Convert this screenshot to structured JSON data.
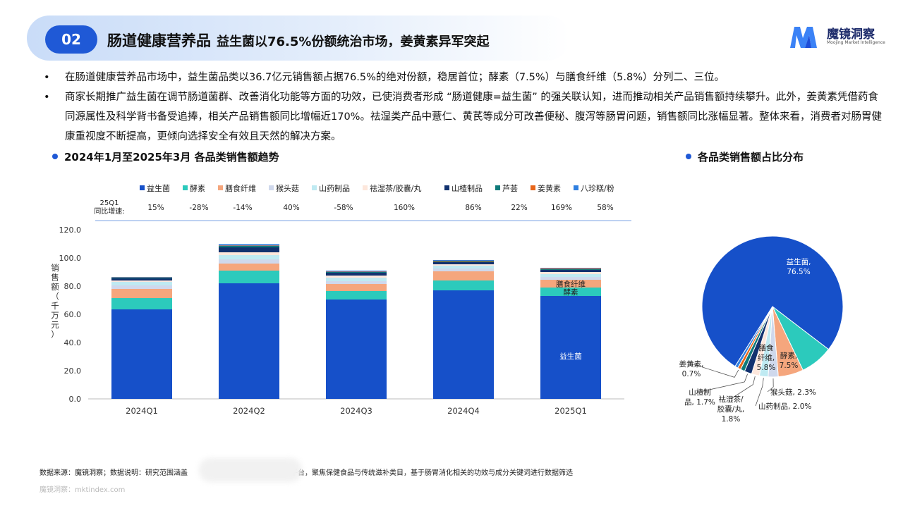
{
  "header": {
    "section_number": "02",
    "title": "肠道健康营养品",
    "subtitle": "益生菌以76.5%份额统治市场，姜黄素异军突起"
  },
  "brand": {
    "name": "魔镜洞察",
    "tagline": "Moojing Market Intelligence"
  },
  "bullets": [
    "在肠道健康营养品市场中，益生菌品类以36.7亿元销售额占据76.5%的绝对份额，稳居首位；酵素（7.5%）与膳食纤维（5.8%）分列二、三位。",
    "商家长期推广益生菌在调节肠道菌群、改善消化功能等方面的功效，已使消费者形成 “肠道健康=益生菌” 的强关联认知，进而推动相关产品销售额持续攀升。此外，姜黄素凭借药食同源属性及科学背书备受追捧，相关产品销售额同比增幅近170%。祛湿类产品中薏仁、黄芪等成分可改善便秘、腹泻等肠胃问题，销售额同比涨幅显著。整体来看，消费者对肠胃健康重视度不断提高，更倾向选择安全有效且天然的解决方案。"
  ],
  "bullet_marker": "•",
  "left_title": "2024年1月至2025年3月 各品类销售额趋势",
  "right_title": "各品类销售额占比分布",
  "yoy_label_line1": "25Q1",
  "yoy_label_line2": "同比增速:",
  "footer": {
    "source_line": "数据来源：魔镜洞察；数据说明：研究范围涵盖",
    "source_line_end": "平台，聚焦保健食品与传统滋补类目，基于肠胃消化相关的功效与成分关键词进行数据筛选",
    "site": "魔镜洞察：mktindex.com"
  },
  "chart_data": [
    {
      "type": "bar",
      "stacked": true,
      "title": "2024年1月至2025年3月 各品类销售额趋势",
      "ylabel": "销售额（千万元）",
      "ylim": [
        0,
        120
      ],
      "yticks": [
        "0.0",
        "20.0",
        "40.0",
        "60.0",
        "80.0",
        "100.0",
        "120.0"
      ],
      "categories": [
        "2024Q1",
        "2024Q2",
        "2024Q3",
        "2024Q4",
        "2025Q1"
      ],
      "legend_position": "top",
      "series": [
        {
          "name": "益生菌",
          "color": "#1650c9",
          "values": [
            63.5,
            82.0,
            70.5,
            77.0,
            73.0
          ],
          "yoy": "15%"
        },
        {
          "name": "酵素",
          "color": "#2ccabc",
          "values": [
            8.0,
            9.0,
            6.0,
            7.0,
            6.0
          ],
          "yoy": "-28%"
        },
        {
          "name": "膳食纤维",
          "color": "#f5a67d",
          "values": [
            6.5,
            5.0,
            5.0,
            6.5,
            5.5
          ],
          "yoy": "-14%"
        },
        {
          "name": "猴头菇",
          "color": "#cfd8ec",
          "values": [
            2.5,
            3.0,
            2.0,
            2.0,
            2.0
          ],
          "yoy": "40%"
        },
        {
          "name": "山药制品",
          "color": "#bfeaf2",
          "values": [
            2.5,
            3.0,
            2.5,
            2.0,
            2.0
          ],
          "yoy": "-58%"
        },
        {
          "name": "祛湿茶/胶囊/丸",
          "color": "#fde7dc",
          "values": [
            1.0,
            2.0,
            1.5,
            1.0,
            1.5
          ],
          "yoy": "160%"
        },
        {
          "name": "山楂制品",
          "color": "#12326f",
          "values": [
            1.5,
            3.5,
            2.0,
            1.5,
            1.5
          ],
          "yoy": "86%"
        },
        {
          "name": "芦荟",
          "color": "#0f7a7a",
          "values": [
            0.5,
            1.0,
            0.5,
            0.5,
            0.5
          ],
          "yoy": "22%"
        },
        {
          "name": "姜黄素",
          "color": "#e8661a",
          "values": [
            0.2,
            0.3,
            0.3,
            0.5,
            0.5
          ],
          "yoy": "169%"
        },
        {
          "name": "八珍糕/粉",
          "color": "#2f7fe0",
          "values": [
            0.3,
            1.0,
            0.7,
            0.5,
            0.5
          ],
          "yoy": "58%"
        }
      ],
      "annotations": [
        {
          "category": "2025Q1",
          "series": "益生菌",
          "text": "益生菌"
        },
        {
          "category": "2025Q1",
          "series": "酵素",
          "text": "酵素"
        },
        {
          "category": "2025Q1",
          "series": "膳食纤维",
          "text": "膳食纤维"
        }
      ]
    },
    {
      "type": "pie",
      "title": "各品类销售额占比分布",
      "slices": [
        {
          "name": "益生菌",
          "value": 76.5,
          "label": [
            "益生菌,",
            "76.5%"
          ],
          "color": "#1650c9"
        },
        {
          "name": "酵素",
          "value": 7.5,
          "label": [
            "酵素,",
            "7.5%"
          ],
          "color": "#2ccabc"
        },
        {
          "name": "膳食纤维",
          "value": 5.8,
          "label": [
            "膳食",
            "纤维,",
            "5.8%"
          ],
          "color": "#f5a67d"
        },
        {
          "name": "猴头菇",
          "value": 2.3,
          "label": [
            "猴头菇, 2.3%"
          ],
          "color": "#cfd8ec"
        },
        {
          "name": "山药制品",
          "value": 2.0,
          "label": [
            "山药制品, 2.0%"
          ],
          "color": "#bfeaf2"
        },
        {
          "name": "祛湿茶/胶囊/丸",
          "value": 1.8,
          "label": [
            "祛湿茶/",
            "胶囊/丸,",
            "1.8%"
          ],
          "color": "#fde7dc"
        },
        {
          "name": "山楂制品",
          "value": 1.7,
          "label": [
            "山楂制",
            "品, 1.7%"
          ],
          "color": "#12326f"
        },
        {
          "name": "芦荟",
          "value": 1.0,
          "label": [],
          "color": "#0f7a7a"
        },
        {
          "name": "姜黄素",
          "value": 0.7,
          "label": [
            "姜黄素,",
            "0.7%"
          ],
          "color": "#e8661a"
        },
        {
          "name": "八珍糕/粉",
          "value": 0.7,
          "label": [],
          "color": "#2f7fe0"
        }
      ]
    }
  ]
}
